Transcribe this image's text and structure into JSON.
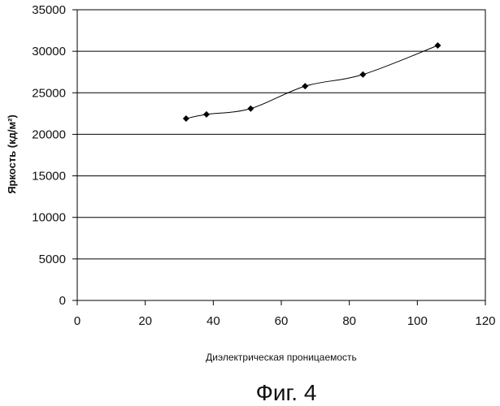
{
  "chart_data": {
    "type": "line",
    "xlabel": "Диэлектрическая проницаемость",
    "ylabel": "Яркость (кд/м²)",
    "caption": "Фиг. 4",
    "xlim": [
      0,
      120
    ],
    "ylim": [
      0,
      35000
    ],
    "xticks": [
      "0",
      "20",
      "40",
      "60",
      "80",
      "100",
      "120"
    ],
    "yticks": [
      "0",
      "5000",
      "10000",
      "15000",
      "20000",
      "25000",
      "30000",
      "35000"
    ],
    "grid": "horizontal",
    "marker": "diamond",
    "series": [
      {
        "x": [
          32,
          38,
          51,
          67,
          84,
          106
        ],
        "y": [
          21900,
          22400,
          23100,
          25800,
          27200,
          30700
        ]
      }
    ]
  }
}
